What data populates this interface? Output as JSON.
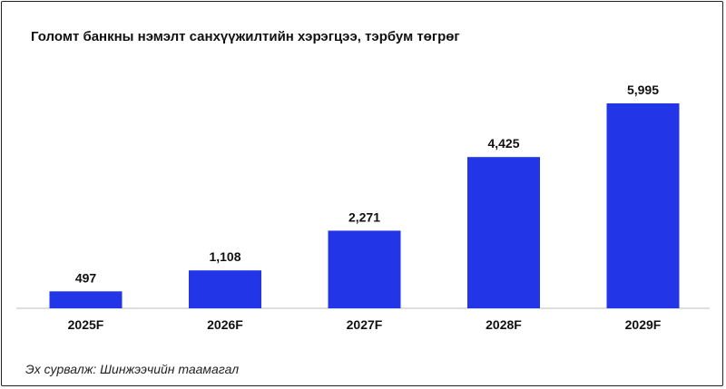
{
  "title": "Голомт банкны нэмэлт санхүүжилтийн хэрэгцээ, тэрбум төгрөг",
  "source": "Эх сурвалж: Шинжээчийн таамагал",
  "colors": {
    "bar": "#2236e8",
    "baseline": "#bdbdbd",
    "frame": "#222222"
  },
  "chart_data": {
    "type": "bar",
    "title": "Голомт банкны нэмэлт санхүүжилтийн хэрэгцээ, тэрбум төгрөг",
    "categories": [
      "2025F",
      "2026F",
      "2027F",
      "2028F",
      "2029F"
    ],
    "values": [
      497,
      1108,
      2271,
      4425,
      5995
    ],
    "value_labels": [
      "497",
      "1,108",
      "2,271",
      "4,425",
      "5,995"
    ],
    "xlabel": "",
    "ylabel": "",
    "ylim": [
      0,
      6500
    ],
    "grid": false,
    "legend": "none"
  }
}
